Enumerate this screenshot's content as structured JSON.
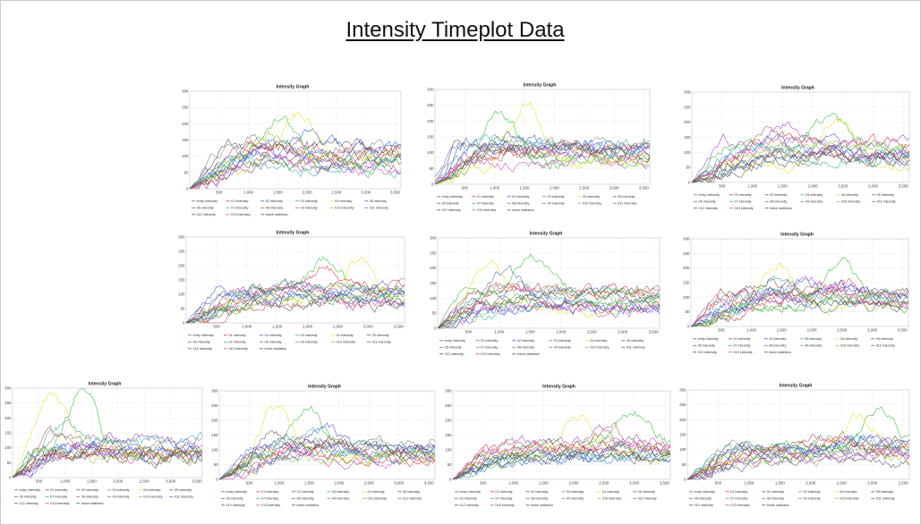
{
  "page": {
    "title": "Intensity Timeplot Data"
  },
  "chart_data": [
    {
      "type": "line",
      "title": "Intensity Graph",
      "xlim": [
        0,
        3600
      ],
      "ylim": [
        0,
        300
      ],
      "x_ticks": [
        "500",
        "1,000",
        "1,500",
        "2,000",
        "2,500",
        "3,000",
        "3,500"
      ],
      "y_ticks": [
        "0",
        "50",
        "100",
        "150",
        "200",
        "250",
        "300"
      ],
      "grid": true,
      "legend_placement": "bottom",
      "series_names": [
        "entry intensity",
        "01 intensity",
        "02 intensity",
        "03 intensity",
        "04 intensity",
        "05 intensity",
        "06 intensity",
        "07 intensity",
        "08 intensity",
        "09 intensity",
        "010 intensity",
        "011 intensity",
        "012 intensity",
        "013 intensity",
        "leave statistics"
      ],
      "seed": 11,
      "peak_x": 1500,
      "peak_y": 255
    },
    {
      "type": "line",
      "title": "Intensity Graph",
      "xlim": [
        0,
        3600
      ],
      "ylim": [
        0,
        300
      ],
      "x_ticks": [
        "500",
        "1,000",
        "1,500",
        "2,000",
        "2,500",
        "3,000",
        "3,500"
      ],
      "y_ticks": [
        "0",
        "50",
        "100",
        "150",
        "200",
        "250",
        "300"
      ],
      "grid": true,
      "legend_placement": "bottom",
      "series_names": [
        "entry intensity",
        "01 intensity",
        "02 intensity",
        "03 intensity",
        "04 intensity",
        "05 intensity",
        "06 intensity",
        "07 intensity",
        "08 intensity",
        "09 intensity",
        "010 intensity",
        "011 intensity",
        "012 intensity",
        "013 intensity",
        "leave statistics"
      ],
      "seed": 23,
      "peak_x": 1050,
      "peak_y": 285
    },
    {
      "type": "line",
      "title": "Intensity Graph",
      "xlim": [
        0,
        3600
      ],
      "ylim": [
        0,
        300
      ],
      "x_ticks": [
        "500",
        "1,000",
        "1,500",
        "2,000",
        "2,500",
        "3,000",
        "3,500"
      ],
      "y_ticks": [
        "0",
        "50",
        "100",
        "150",
        "200",
        "250",
        "300"
      ],
      "grid": true,
      "legend_placement": "bottom",
      "series_names": [
        "entry intensity",
        "01 intensity",
        "02 intensity",
        "03 intensity",
        "04 intensity",
        "05 intensity",
        "06 intensity",
        "07 intensity",
        "08 intensity",
        "09 intensity",
        "010 intensity",
        "011 intensity",
        "012 intensity",
        "013 intensity",
        "leave statistics"
      ],
      "seed": 37,
      "peak_x": 1750,
      "peak_y": 250
    },
    {
      "type": "line",
      "title": "Intensity Graph",
      "xlim": [
        0,
        3600
      ],
      "ylim": [
        0,
        300
      ],
      "x_ticks": [
        "500",
        "1,000",
        "1,500",
        "2,000",
        "2,500",
        "3,000",
        "3,500"
      ],
      "y_ticks": [
        "0",
        "50",
        "100",
        "150",
        "200",
        "250",
        "300"
      ],
      "grid": true,
      "legend_placement": "bottom",
      "series_names": [
        "entry intensity",
        "01 intensity",
        "02 intensity",
        "03 intensity",
        "04 intensity",
        "05 intensity",
        "06 intensity",
        "07 intensity",
        "08 intensity",
        "09 intensity",
        "010 intensity",
        "011 intensity",
        "012 intensity",
        "013 intensity",
        "leave statistics"
      ],
      "seed": 41,
      "peak_x": 2200,
      "peak_y": 240
    },
    {
      "type": "line",
      "title": "Intensity Graph",
      "xlim": [
        0,
        3600
      ],
      "ylim": [
        0,
        300
      ],
      "x_ticks": [
        "500",
        "1,000",
        "1,500",
        "2,000",
        "2,500",
        "3,000",
        "3,500"
      ],
      "y_ticks": [
        "0",
        "50",
        "100",
        "150",
        "200",
        "250",
        "300"
      ],
      "grid": true,
      "legend_placement": "bottom",
      "series_names": [
        "entry intensity",
        "01 intensity",
        "02 intensity",
        "03 intensity",
        "04 intensity",
        "05 intensity",
        "06 intensity",
        "07 intensity",
        "08 intensity",
        "09 intensity",
        "010 intensity",
        "011 intensity",
        "012 intensity",
        "013 intensity",
        "leave statistics"
      ],
      "seed": 53,
      "peak_x": 1450,
      "peak_y": 262
    },
    {
      "type": "line",
      "title": "Intensity Graph",
      "xlim": [
        0,
        3600
      ],
      "ylim": [
        0,
        300
      ],
      "x_ticks": [
        "500",
        "1,000",
        "1,500",
        "2,000",
        "2,500",
        "3,000",
        "3,500"
      ],
      "y_ticks": [
        "0",
        "50",
        "100",
        "150",
        "200",
        "250",
        "300"
      ],
      "grid": true,
      "legend_placement": "bottom",
      "series_names": [
        "entry intensity",
        "01 intensity",
        "02 intensity",
        "03 intensity",
        "04 intensity",
        "05 intensity",
        "06 intensity",
        "07 intensity",
        "08 intensity",
        "09 intensity",
        "010 intensity",
        "011 intensity",
        "012 intensity",
        "013 intensity",
        "leave statistics"
      ],
      "seed": 67,
      "peak_x": 1900,
      "peak_y": 248
    },
    {
      "type": "line",
      "title": "Intensity Graph",
      "xlim": [
        0,
        3600
      ],
      "ylim": [
        0,
        300
      ],
      "x_ticks": [
        "500",
        "1,000",
        "1,500",
        "2,000",
        "2,500",
        "3,000",
        "3,500"
      ],
      "y_ticks": [
        "0",
        "50",
        "100",
        "150",
        "200",
        "250",
        "300"
      ],
      "grid": true,
      "legend_placement": "bottom",
      "series_names": [
        "entry intensity",
        "01 intensity",
        "02 intensity",
        "03 intensity",
        "04 intensity",
        "05 intensity",
        "06 intensity",
        "07 intensity",
        "08 intensity",
        "09 intensity",
        "010 intensity",
        "011 intensity",
        "012 intensity",
        "013 intensity",
        "leave statistics"
      ],
      "seed": 71,
      "peak_x": 1200,
      "peak_y": 318
    },
    {
      "type": "line",
      "title": "Intensity Graph",
      "xlim": [
        0,
        3600
      ],
      "ylim": [
        0,
        300
      ],
      "x_ticks": [
        "500",
        "1,000",
        "1,500",
        "2,000",
        "2,500",
        "3,000",
        "3,500"
      ],
      "y_ticks": [
        "0",
        "50",
        "100",
        "150",
        "200",
        "250",
        "300"
      ],
      "grid": true,
      "legend_placement": "bottom",
      "series_names": [
        "entry intensity",
        "01 intensity",
        "02 intensity",
        "03 intensity",
        "04 intensity",
        "05 intensity",
        "06 intensity",
        "07 intensity",
        "08 intensity",
        "09 intensity",
        "010 intensity",
        "011 intensity",
        "012 intensity",
        "013 intensity",
        "leave statistics"
      ],
      "seed": 83,
      "peak_x": 1300,
      "peak_y": 278
    },
    {
      "type": "line",
      "title": "Intensity Graph",
      "xlim": [
        0,
        3600
      ],
      "ylim": [
        0,
        300
      ],
      "x_ticks": [
        "500",
        "1,000",
        "1,500",
        "2,000",
        "2,500",
        "3,000",
        "3,500"
      ],
      "y_ticks": [
        "0",
        "50",
        "100",
        "150",
        "200",
        "250",
        "300"
      ],
      "grid": true,
      "legend_placement": "bottom",
      "series_names": [
        "entry intensity",
        "01 intensity",
        "02 intensity",
        "03 intensity",
        "04 intensity",
        "05 intensity",
        "06 intensity",
        "07 intensity",
        "08 intensity",
        "09 intensity",
        "010 intensity",
        "011 intensity",
        "012 intensity",
        "013 intensity",
        "leave statistics"
      ],
      "seed": 97,
      "peak_x": 2300,
      "peak_y": 250
    },
    {
      "type": "line",
      "title": "Intensity Graph",
      "xlim": [
        0,
        3600
      ],
      "ylim": [
        0,
        300
      ],
      "x_ticks": [
        "500",
        "1,000",
        "1,500",
        "2,000",
        "2,500",
        "3,000",
        "3,500"
      ],
      "y_ticks": [
        "0",
        "50",
        "100",
        "150",
        "200",
        "250",
        "300"
      ],
      "grid": true,
      "legend_placement": "bottom",
      "series_names": [
        "entry intensity",
        "01 intensity",
        "02 intensity",
        "03 intensity",
        "04 intensity",
        "05 intensity",
        "06 intensity",
        "07 intensity",
        "08 intensity",
        "09 intensity",
        "010 intensity",
        "011 intensity",
        "012 intensity",
        "013 intensity",
        "leave statistics"
      ],
      "seed": 101,
      "peak_x": 2900,
      "peak_y": 240
    }
  ],
  "series_colors": [
    "#3a8a3a",
    "#e03030",
    "#2060e0",
    "#30c030",
    "#e8e020",
    "#5050c0",
    "#a040c0",
    "#30b0b0",
    "#c05050",
    "#808080",
    "#90c030",
    "#4070d0",
    "#7a4a2a",
    "#d040c0",
    "#505050"
  ]
}
